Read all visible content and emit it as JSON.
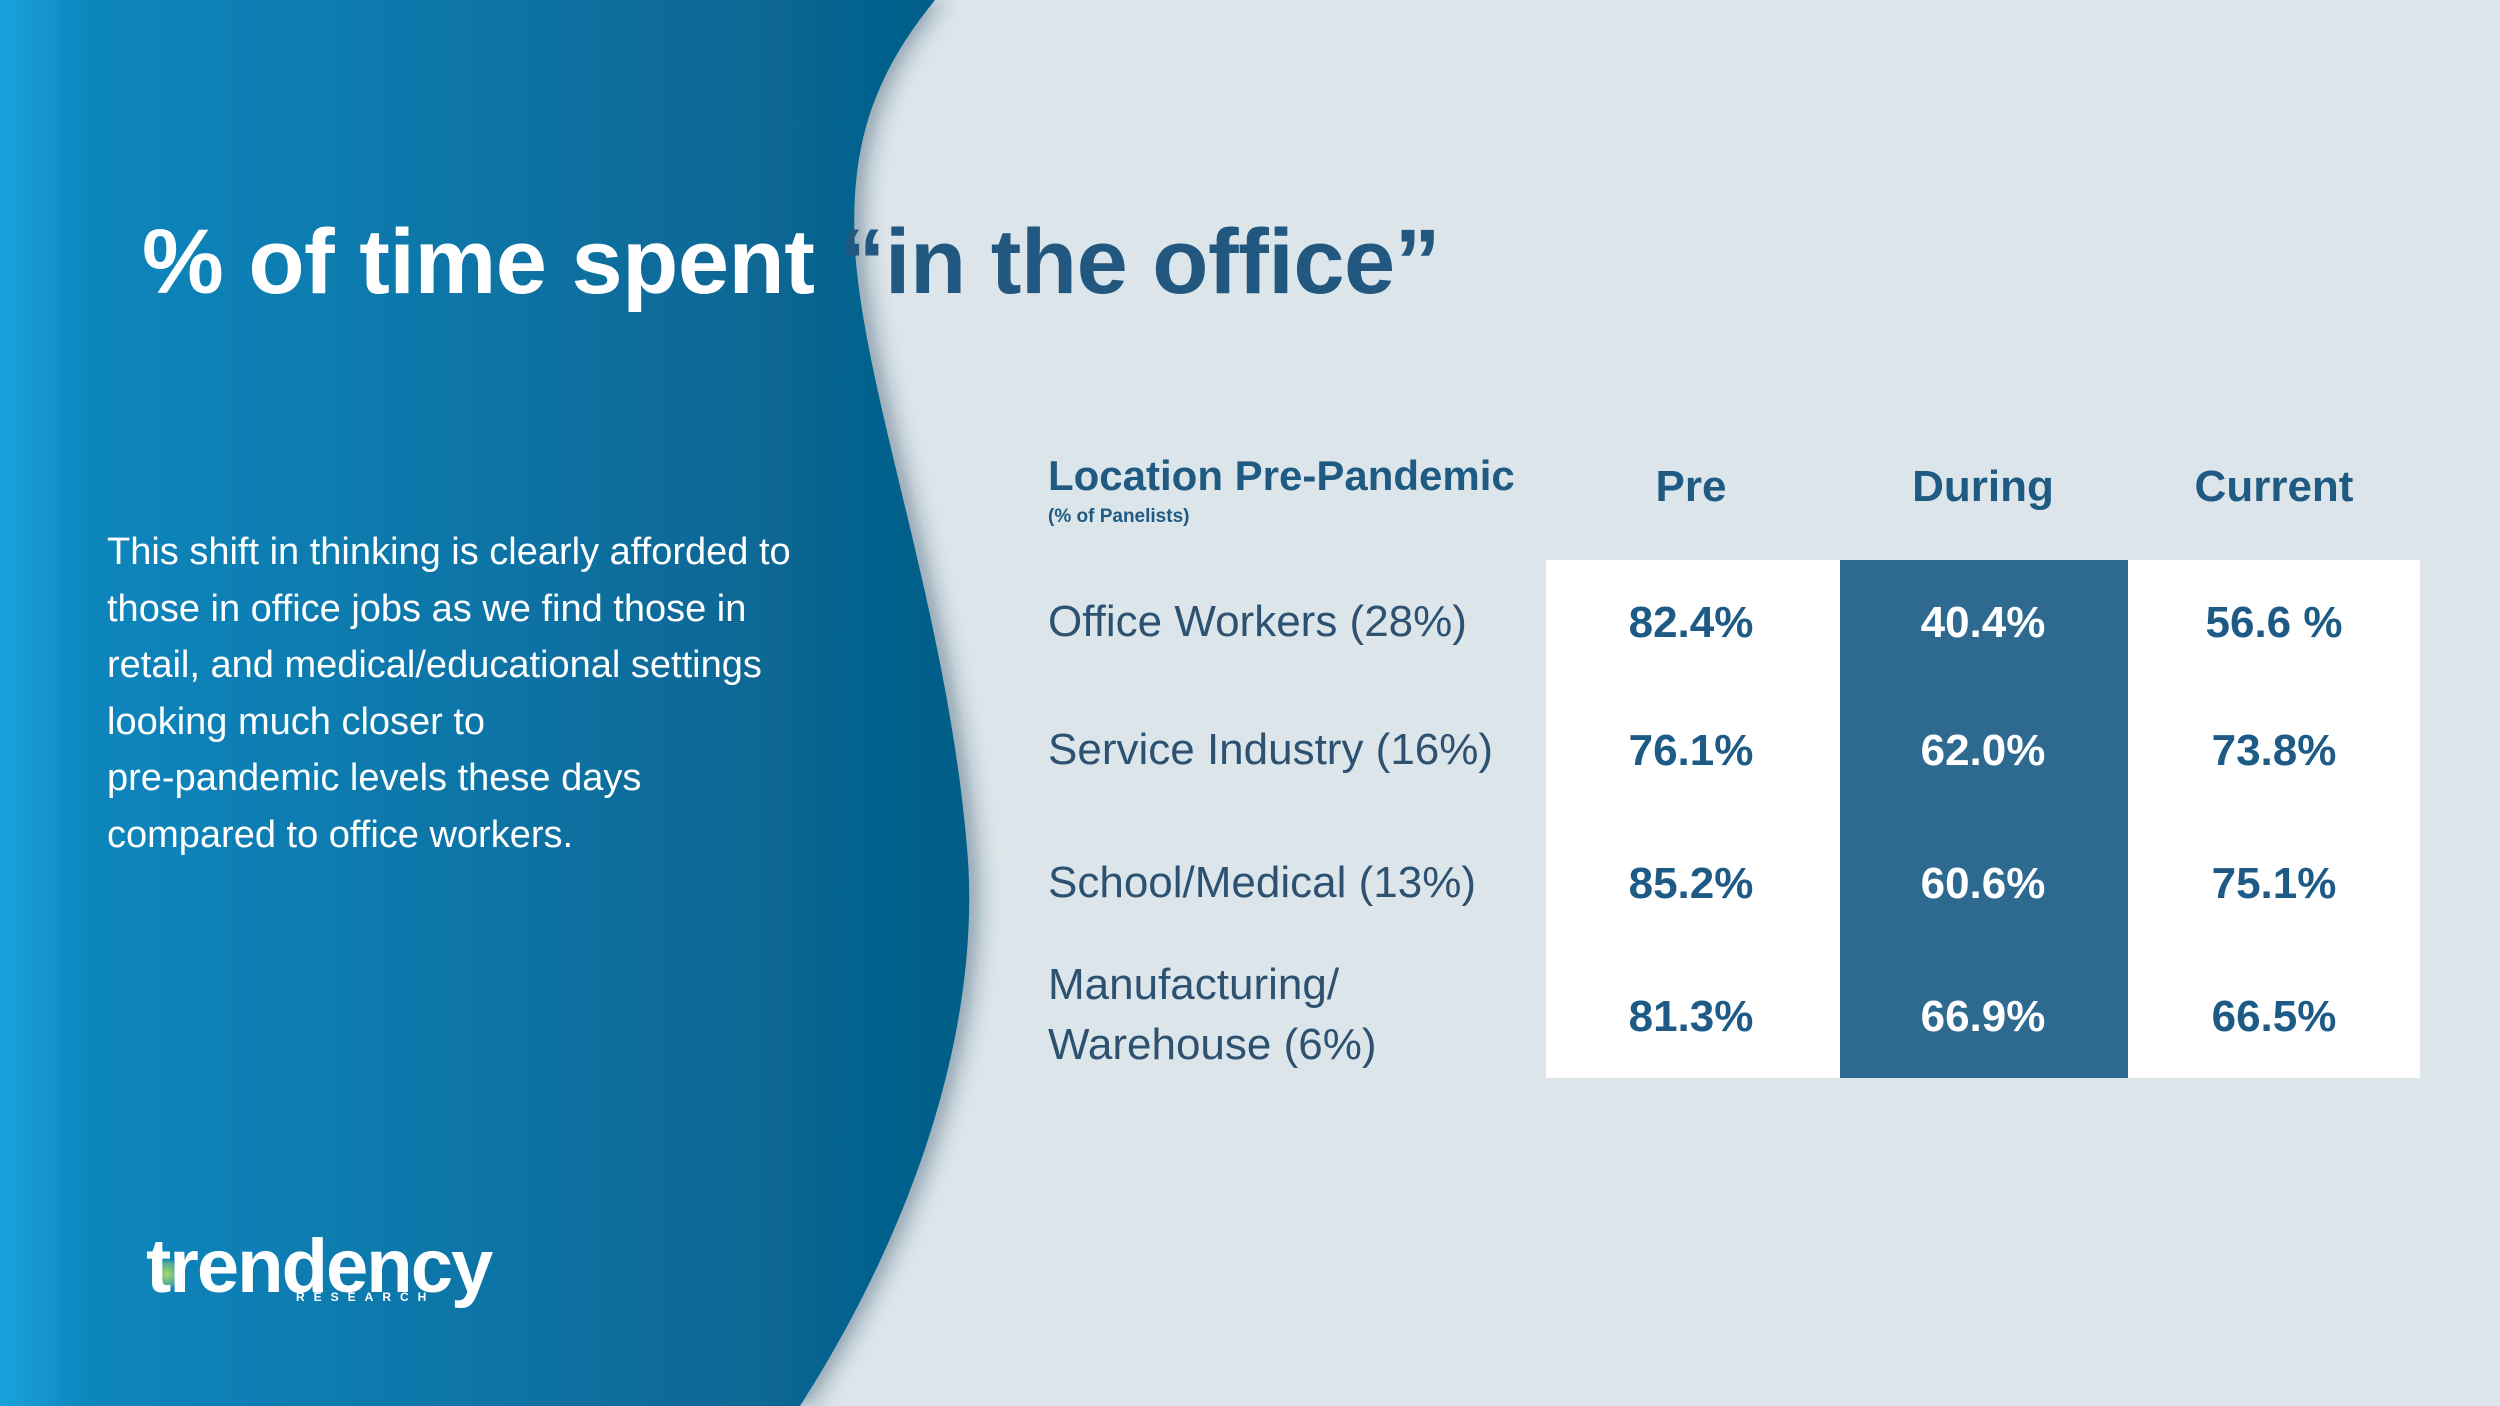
{
  "title": {
    "part1": "% of time spent",
    "part2": "“in the office”"
  },
  "description": {
    "lines": [
      "This shift in thinking is clearly afforded to",
      "those in office jobs as we find those in",
      "retail, and medical/educational settings",
      "looking much closer to",
      "pre-pandemic levels these days",
      "compared to office workers."
    ]
  },
  "table": {
    "header_label": "Location Pre-Pandemic",
    "header_sublabel": "(% of Panelists)",
    "columns": [
      "Pre",
      "During",
      "Current"
    ],
    "rows": [
      {
        "label_lines": [
          "Office Workers (28%)"
        ],
        "pre": "82.4%",
        "during": "40.4%",
        "current": "56.6 %"
      },
      {
        "label_lines": [
          "Service Industry (16%)"
        ],
        "pre": "76.1%",
        "during": "62.0%",
        "current": "73.8%"
      },
      {
        "label_lines": [
          "School/Medical (13%)"
        ],
        "pre": "85.2%",
        "during": "60.6%",
        "current": "75.1%"
      },
      {
        "label_lines": [
          "Manufacturing/",
          "Warehouse (6%)"
        ],
        "pre": "81.3%",
        "during": "66.9%",
        "current": "66.5%"
      }
    ]
  },
  "logo": {
    "word": "trendency",
    "sub": "RESEARCH"
  },
  "colors": {
    "background": "#dce5ea",
    "panel_dark": "#0b6d9a",
    "accent_blue": "#1e5a86",
    "during_column": "#2e6990"
  }
}
